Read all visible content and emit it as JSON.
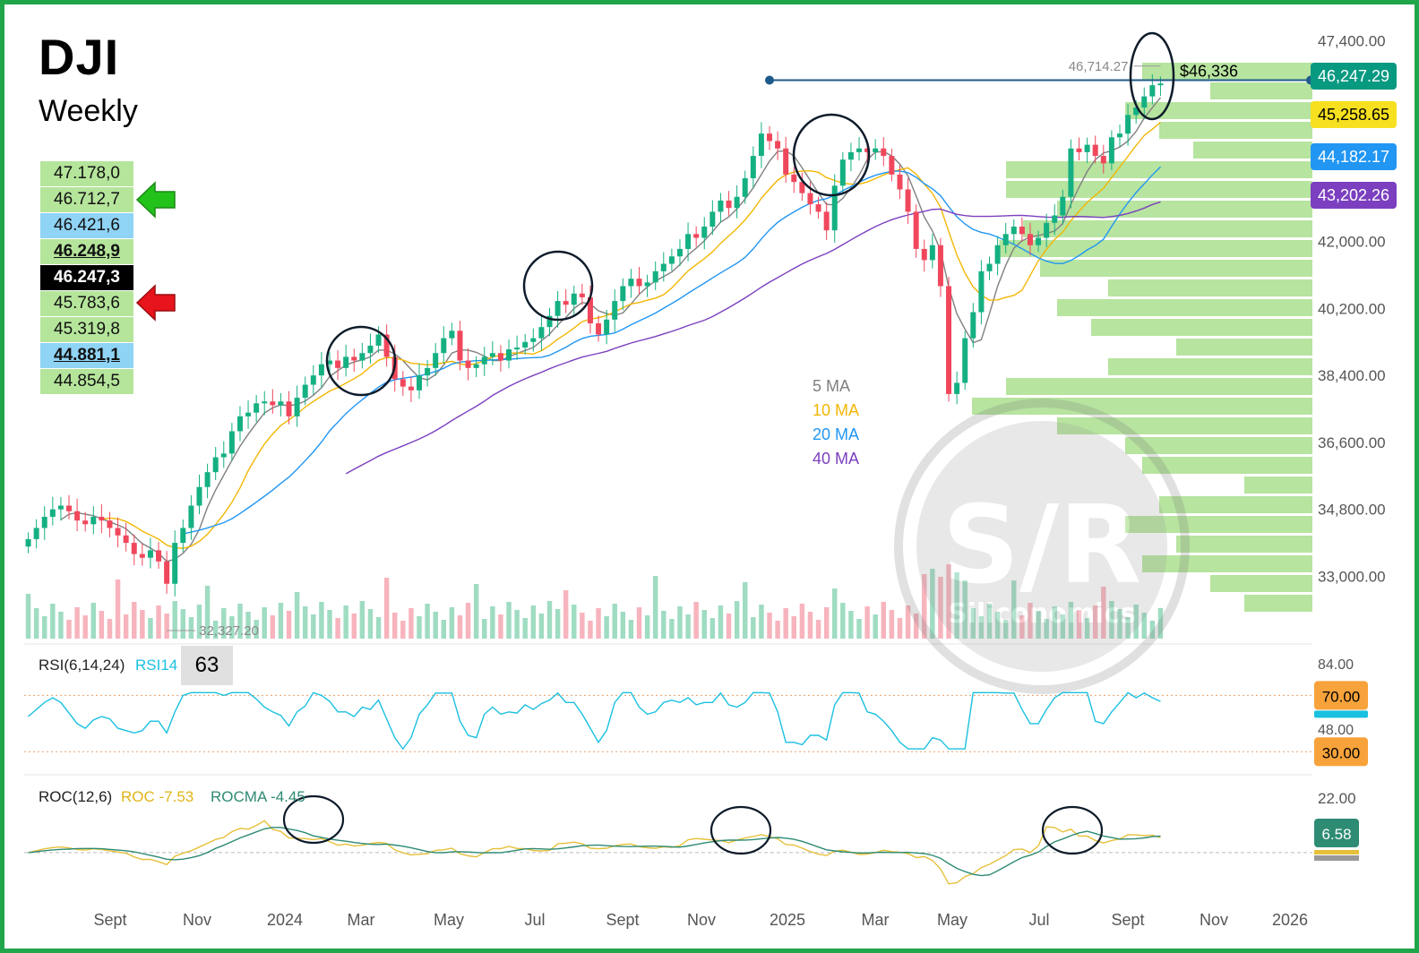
{
  "header": {
    "title": "DJI",
    "timeframe": "Weekly"
  },
  "levels": [
    {
      "value": "47.178,0",
      "style": "green"
    },
    {
      "value": "46.712,7",
      "style": "green"
    },
    {
      "value": "46.421,6",
      "style": "blue"
    },
    {
      "value": "46.248,9",
      "style": "bold"
    },
    {
      "value": "46.247,3",
      "style": "black"
    },
    {
      "value": "45.783,6",
      "style": "green"
    },
    {
      "value": "45.319,8",
      "style": "green"
    },
    {
      "value": "44.881,1",
      "style": "blue-bold"
    },
    {
      "value": "44.854,5",
      "style": "green"
    }
  ],
  "arrows": {
    "up_level": "46.712,7",
    "down_level": "45.783,6",
    "up_color": "#22c21a",
    "down_color": "#e8141b"
  },
  "annotations": {
    "high_label": "46,714.27",
    "low_label": "32,327.20",
    "line_label": "$46,336"
  },
  "ma_legend": [
    {
      "label": "5 MA",
      "color": "#808080"
    },
    {
      "label": "10 MA",
      "color": "#f2b705"
    },
    {
      "label": "20 MA",
      "color": "#2196f3"
    },
    {
      "label": "40 MA",
      "color": "#7b3fbf"
    }
  ],
  "price_tags": [
    {
      "value": "46,247.29",
      "bg": "#089981",
      "fg": "#ffffff"
    },
    {
      "value": "45,258.65",
      "bg": "#f7e01f",
      "fg": "#000000"
    },
    {
      "value": "44,182.17",
      "bg": "#2196f3",
      "fg": "#ffffff"
    },
    {
      "value": "43,202.26",
      "bg": "#7b3fbf",
      "fg": "#ffffff"
    }
  ],
  "rsi": {
    "label": "RSI(6,14,24)",
    "series_label": "RSI14",
    "value": "63",
    "axis_top": "84.00",
    "axis_mid": "48.00",
    "overbought": "70.00",
    "oversold": "30.00"
  },
  "roc": {
    "label": "ROC(12,6)",
    "roc_label": "ROC -7.53",
    "rocma_label": "ROCMA -4.45",
    "axis_top": "22.00",
    "value_tag": "6.58"
  },
  "watermark": {
    "text": "S/R",
    "subtext": "Siliconomics"
  },
  "chart_data": {
    "type": "candlestick",
    "title": "DJI",
    "timeframe": "Weekly",
    "price_axis": {
      "ticks": [
        "47,400.00",
        "42,000.00",
        "40,200.00",
        "38,400.00",
        "36,600.00",
        "34,800.00",
        "33,000.00"
      ],
      "ylim": [
        32000,
        47600
      ]
    },
    "time_axis": {
      "ticks": [
        "Sept",
        "Nov",
        "2024",
        "Mar",
        "May",
        "Jul",
        "Sept",
        "Nov",
        "2025",
        "Mar",
        "May",
        "Jul",
        "Sept",
        "Nov",
        "2026"
      ]
    },
    "weekly_closes": [
      34000,
      34300,
      34600,
      34800,
      34900,
      34750,
      34500,
      34400,
      34600,
      34500,
      34300,
      34100,
      33900,
      33600,
      33500,
      33700,
      33400,
      32800,
      33900,
      34300,
      34900,
      35400,
      35800,
      36200,
      36300,
      36900,
      37300,
      37400,
      37650,
      37700,
      37600,
      37700,
      37300,
      37800,
      38150,
      38400,
      38700,
      38800,
      38600,
      38900,
      38800,
      39000,
      39200,
      39500,
      38900,
      38300,
      38100,
      38000,
      38400,
      38600,
      39000,
      39400,
      39600,
      38800,
      38600,
      38700,
      38900,
      39000,
      38800,
      39100,
      39150,
      39300,
      39400,
      39700,
      40000,
      40400,
      40300,
      40600,
      40500,
      39800,
      39500,
      39900,
      40400,
      40800,
      41000,
      40800,
      40900,
      41200,
      41400,
      41600,
      41800,
      42200,
      42100,
      42400,
      42800,
      43100,
      42900,
      43200,
      43700,
      44300,
      44900,
      44700,
      44500,
      43800,
      43600,
      43300,
      43000,
      42800,
      42300,
      43500,
      44200,
      44400,
      44500,
      44400,
      44500,
      44300,
      43800,
      43400,
      42800,
      41800,
      41500,
      41900,
      40800,
      37900,
      38200,
      39400,
      40100,
      41200,
      41400,
      41900,
      42200,
      42400,
      42200,
      41900,
      42100,
      42500,
      42700,
      43200,
      44500,
      44400,
      44600,
      44300,
      44100,
      44800,
      44900,
      45400,
      45600,
      45900,
      46200,
      46247
    ],
    "moving_averages": [
      {
        "name": "5 MA",
        "period": 5
      },
      {
        "name": "10 MA",
        "period": 10
      },
      {
        "name": "20 MA",
        "period": 20
      },
      {
        "name": "40 MA",
        "period": 40
      }
    ],
    "key_points": {
      "high": 46714.27,
      "low": 32327.2,
      "last": 46247.29,
      "horizontal_line": 46336
    },
    "indicators": {
      "rsi14_last": 63,
      "rsi_levels": [
        70,
        30
      ],
      "roc_last": -7.53,
      "rocma_last": -4.45
    }
  }
}
